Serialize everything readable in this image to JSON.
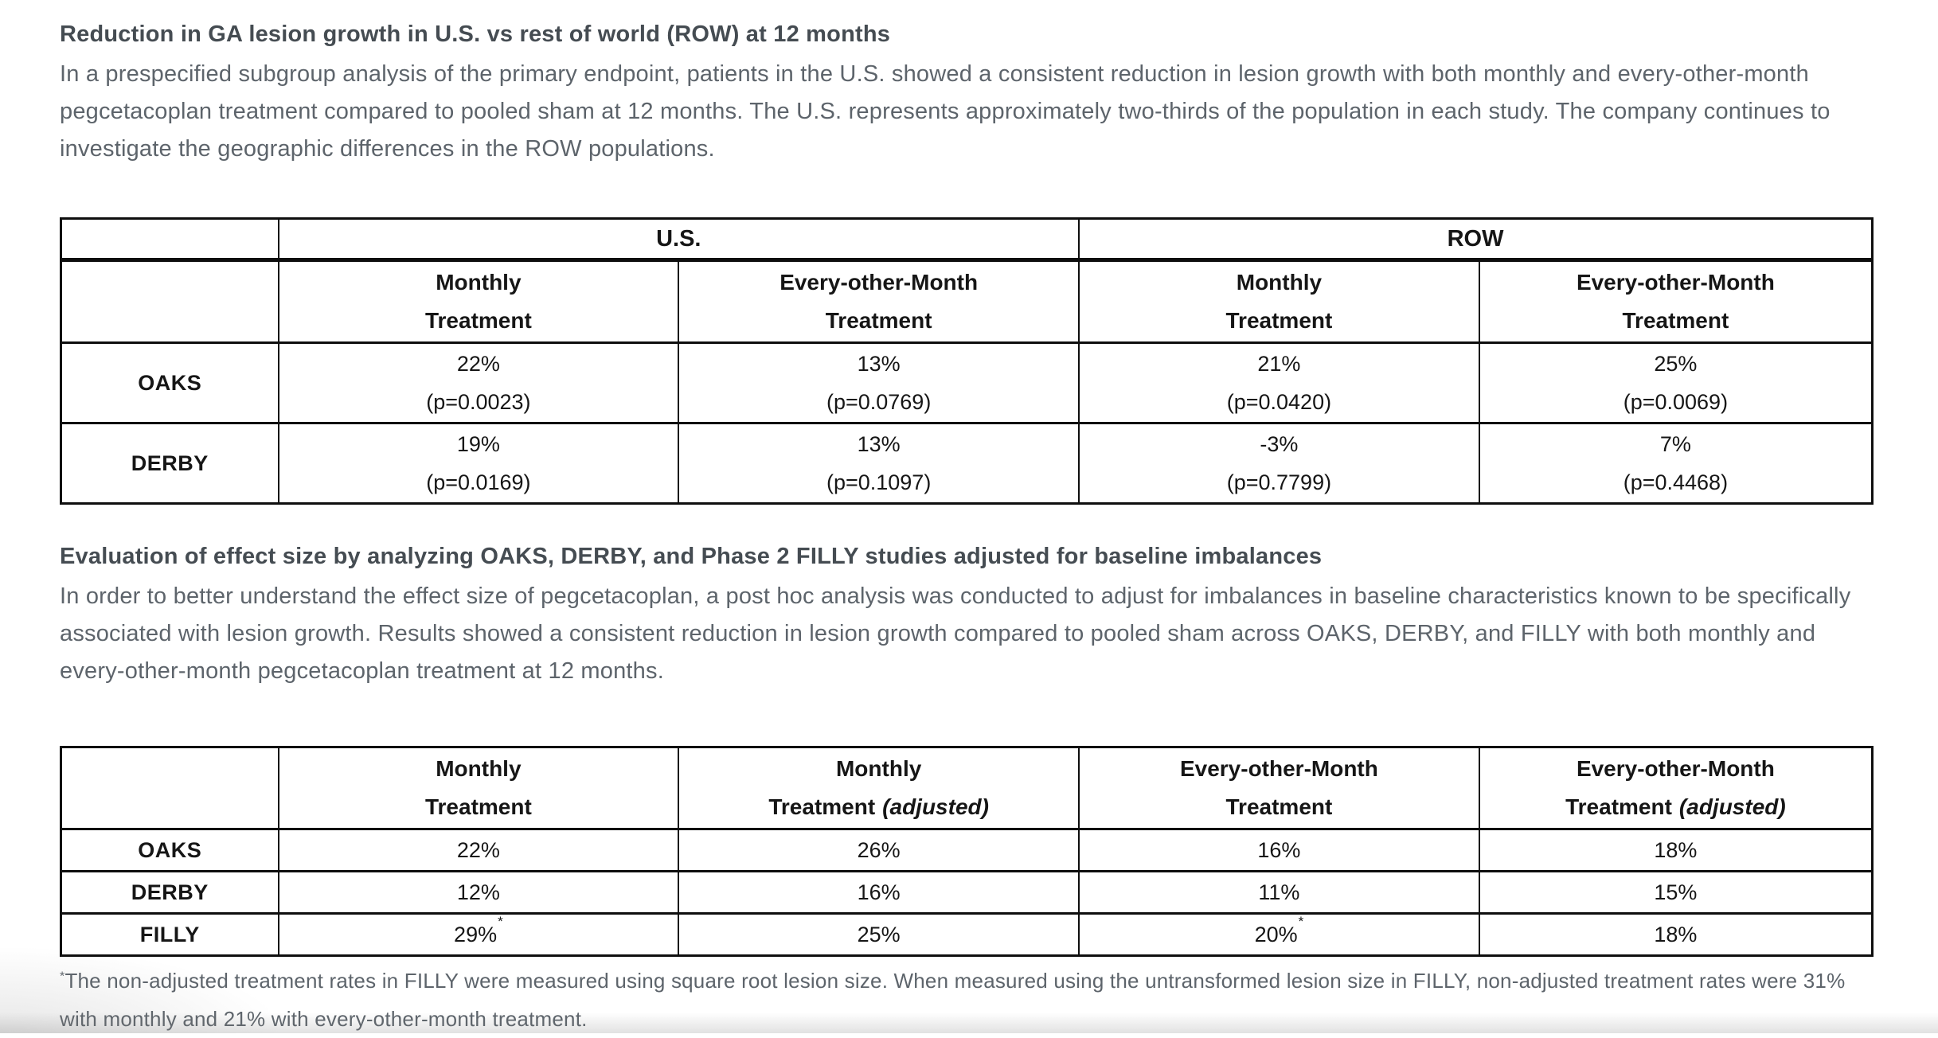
{
  "section1": {
    "heading": "Reduction in GA lesion growth in U.S. vs rest of world (ROW) at 12 months",
    "paragraph": "In a prespecified subgroup analysis of the primary endpoint, patients in the U.S. showed a consistent reduction in lesion growth with both monthly and every-other-month pegcetacoplan treatment compared to pooled sham at 12 months. The U.S. represents approximately two-thirds of the population in each study. The company continues to investigate the geographic differences in the ROW populations."
  },
  "table1": {
    "region_headers": [
      "U.S.",
      "ROW"
    ],
    "col_headers": [
      {
        "line1": "Monthly",
        "line2": "Treatment"
      },
      {
        "line1": "Every-other-Month",
        "line2": "Treatment"
      },
      {
        "line1": "Monthly",
        "line2": "Treatment"
      },
      {
        "line1": "Every-other-Month",
        "line2": "Treatment"
      }
    ],
    "rows": [
      {
        "label": "OAKS",
        "cells": [
          {
            "value": "22%",
            "p": "(p=0.0023)"
          },
          {
            "value": "13%",
            "p": "(p=0.0769)"
          },
          {
            "value": "21%",
            "p": "(p=0.0420)"
          },
          {
            "value": "25%",
            "p": "(p=0.0069)"
          }
        ]
      },
      {
        "label": "DERBY",
        "cells": [
          {
            "value": "19%",
            "p": "(p=0.0169)"
          },
          {
            "value": "13%",
            "p": "(p=0.1097)"
          },
          {
            "value": "-3%",
            "p": "(p=0.7799)"
          },
          {
            "value": "7%",
            "p": "(p=0.4468)"
          }
        ]
      }
    ]
  },
  "section2": {
    "heading": "Evaluation of effect size by analyzing OAKS, DERBY, and Phase 2 FILLY studies adjusted for baseline imbalances",
    "paragraph": "In order to better understand the effect size of pegcetacoplan, a post hoc analysis was conducted to adjust for imbalances in baseline characteristics known to be specifically associated with lesion growth. Results showed a consistent reduction in lesion growth compared to pooled sham across OAKS, DERBY, and FILLY with both monthly and every-other-month pegcetacoplan treatment at 12 months.",
    "footnote_marker": "*",
    "footnote": "The non-adjusted treatment rates in FILLY were measured using square root lesion size. When measured using the untransformed lesion size in FILLY, non-adjusted treatment rates were 31% with monthly and 21% with every-other-month treatment."
  },
  "table2": {
    "col_headers": [
      {
        "line1": "Monthly",
        "line2": "Treatment",
        "suffix": ""
      },
      {
        "line1": "Monthly",
        "line2": "Treatment",
        "suffix": "(adjusted)"
      },
      {
        "line1": "Every-other-Month",
        "line2": "Treatment",
        "suffix": ""
      },
      {
        "line1": "Every-other-Month",
        "line2": "Treatment",
        "suffix": "(adjusted)"
      }
    ],
    "rows": [
      {
        "label": "OAKS",
        "cells": [
          {
            "value": "22%",
            "sup": ""
          },
          {
            "value": "26%",
            "sup": ""
          },
          {
            "value": "16%",
            "sup": ""
          },
          {
            "value": "18%",
            "sup": ""
          }
        ]
      },
      {
        "label": "DERBY",
        "cells": [
          {
            "value": "12%",
            "sup": ""
          },
          {
            "value": "16%",
            "sup": ""
          },
          {
            "value": "11%",
            "sup": ""
          },
          {
            "value": "15%",
            "sup": ""
          }
        ]
      },
      {
        "label": "FILLY",
        "cells": [
          {
            "value": "29%",
            "sup": "*"
          },
          {
            "value": "25%",
            "sup": ""
          },
          {
            "value": "20%",
            "sup": "*"
          },
          {
            "value": "18%",
            "sup": ""
          }
        ]
      }
    ]
  }
}
